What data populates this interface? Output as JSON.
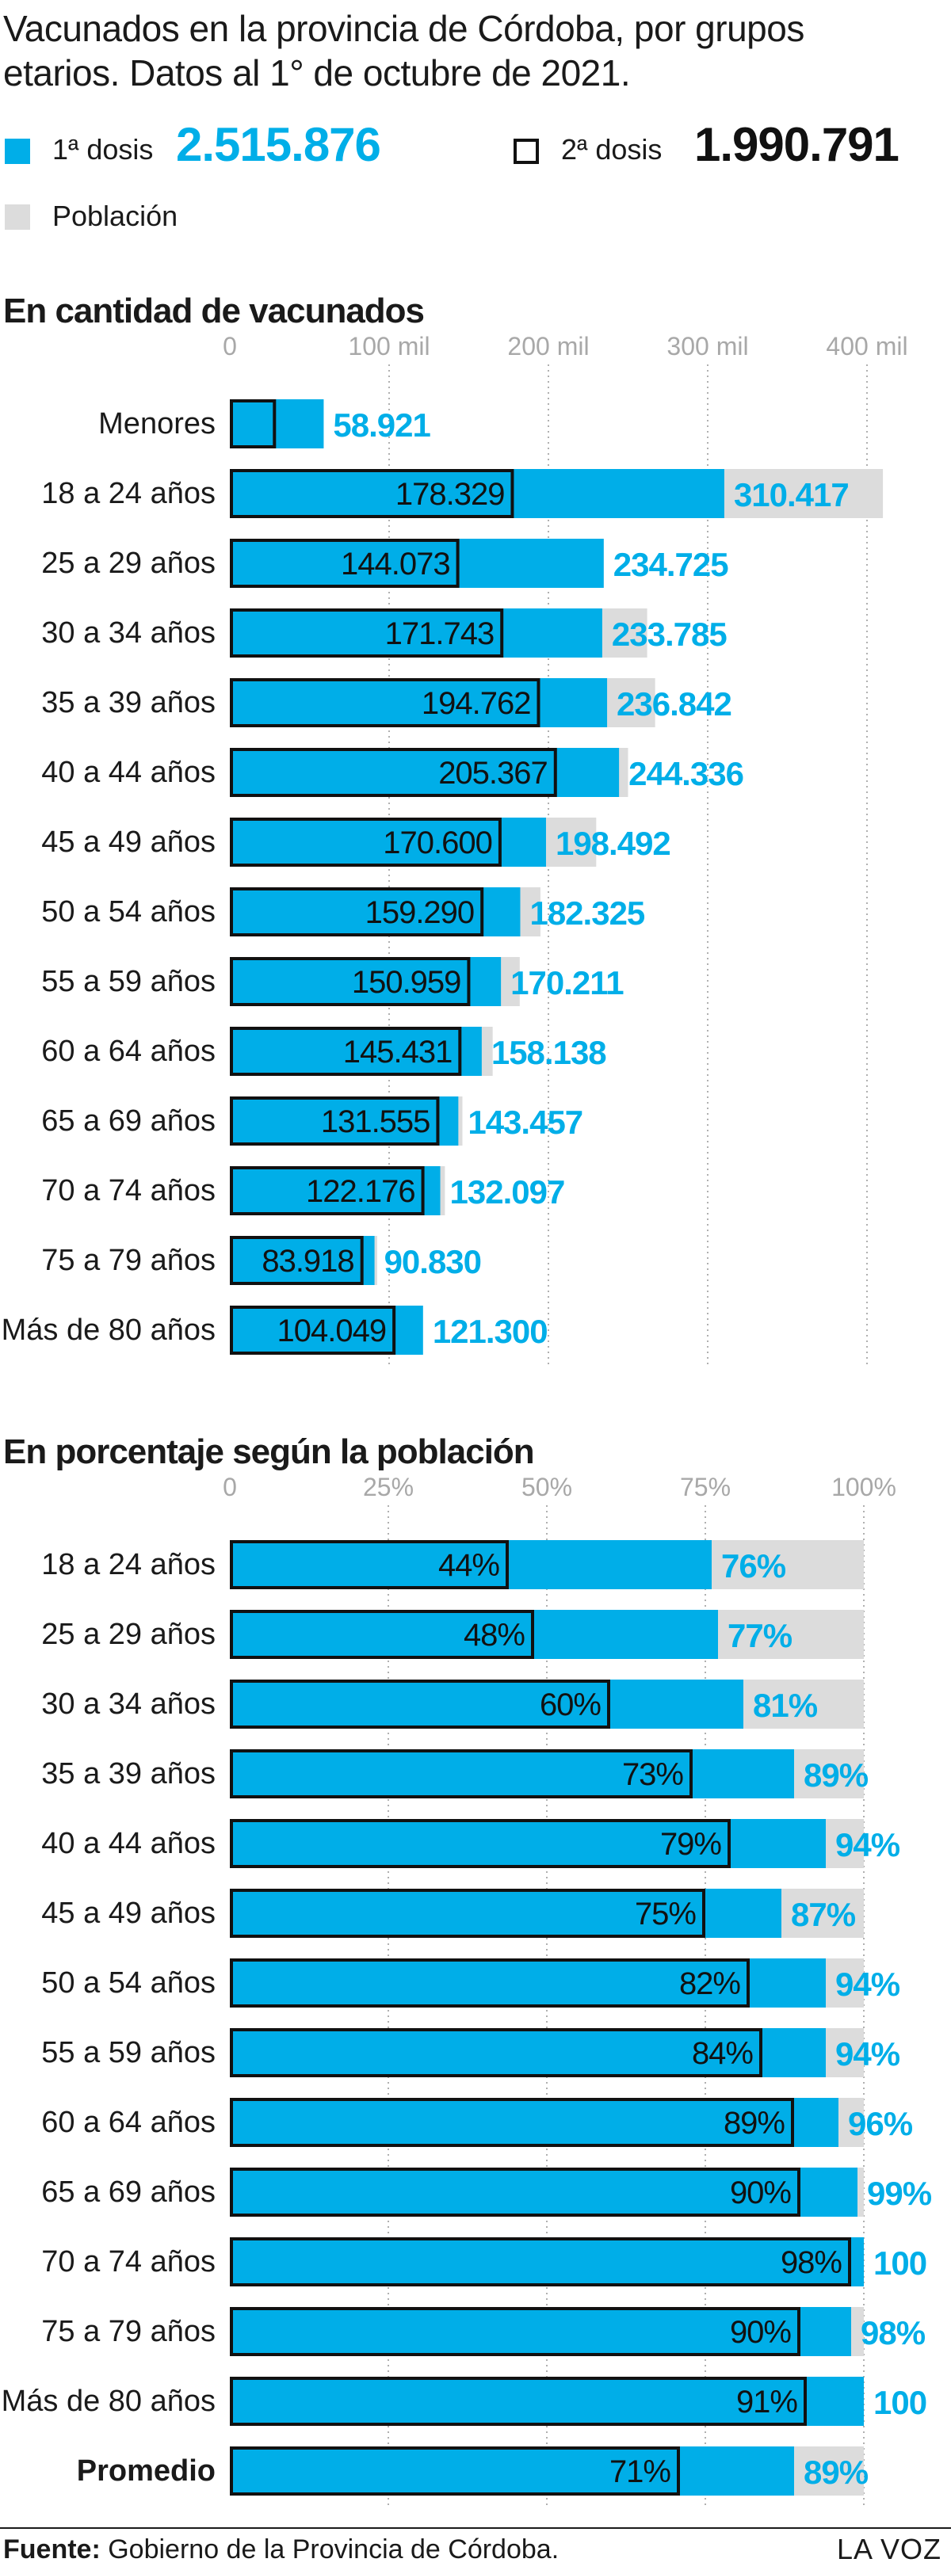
{
  "title": "Vacunados en la provincia de Córdoba, por grupos etarios. Datos al 1° de octubre de 2021.",
  "legend": {
    "dose1_label": "1ª dosis",
    "dose1_total": "2.515.876",
    "dose2_label": "2ª dosis",
    "dose2_total": "1.990.791",
    "population_label": "Población"
  },
  "colors": {
    "dose1": "#00aee8",
    "dose2_border": "#111111",
    "population": "#dcdcdc",
    "grid": "#b0b0b0",
    "tick": "#a8a8a8"
  },
  "footer": {
    "source_label": "Fuente:",
    "source_text": "Gobierno de la Provincia de Córdoba.",
    "brand": "LA VOZ"
  },
  "chart_data": [
    {
      "type": "bar",
      "title": "En cantidad de vacunados",
      "orientation": "horizontal",
      "xlim": [
        0,
        400000
      ],
      "ticks": [
        0,
        100000,
        200000,
        300000,
        400000
      ],
      "tick_labels": [
        "0",
        "100 mil",
        "200 mil",
        "300 mil",
        "400 mil"
      ],
      "grid": true,
      "categories": [
        "Menores",
        "18 a 24 años",
        "25 a 29 años",
        "30 a 34 años",
        "35 a 39 años",
        "40 a 44 años",
        "45 a 49 años",
        "50 a 54 años",
        "55 a 59 años",
        "60 a 64 años",
        "65 a 69 años",
        "70 a 74 años",
        "75 a 79  años",
        "Más de 80 años"
      ],
      "series": [
        {
          "name": "Población",
          "values": [
            null,
            410000,
            234725,
            262000,
            267000,
            250000,
            230000,
            195000,
            182000,
            165000,
            146000,
            135000,
            92500,
            114000
          ]
        },
        {
          "name": "1ª dosis",
          "values": [
            58921,
            310417,
            234725,
            233785,
            236842,
            244336,
            198492,
            182325,
            170211,
            158138,
            143457,
            132097,
            90830,
            121300
          ],
          "labels": [
            "58.921",
            "310.417",
            "234.725",
            "233.785",
            "236.842",
            "244.336",
            "198.492",
            "182.325",
            "170.211",
            "158.138",
            "143.457",
            "132.097",
            "90.830",
            "121.300"
          ]
        },
        {
          "name": "2ª dosis",
          "values": [
            29000,
            178329,
            144073,
            171743,
            194762,
            205367,
            170600,
            159290,
            150959,
            145431,
            131555,
            122176,
            83918,
            104049
          ],
          "labels": [
            "",
            "178.329",
            "144.073",
            "171.743",
            "194.762",
            "205.367",
            "170.600",
            "159.290",
            "150.959",
            "145.431",
            "131.555",
            "122.176",
            "83.918",
            "104.049"
          ]
        }
      ]
    },
    {
      "type": "bar",
      "title": "En porcentaje según la población",
      "orientation": "horizontal",
      "xlim": [
        0,
        100
      ],
      "ticks": [
        0,
        25,
        50,
        75,
        100
      ],
      "tick_labels": [
        "0",
        "25%",
        "50%",
        "75%",
        "100%"
      ],
      "grid": true,
      "categories": [
        "18 a 24 años",
        "25 a 29 años",
        "30 a 34 años",
        "35 a 39 años",
        "40 a 44 años",
        "45 a 49 años",
        "50 a 54 años",
        "55 a 59 años",
        "60 a 64 años",
        "65 a 69 años",
        "70 a 74 años",
        "75 a 79  años",
        "Más de 80 años",
        "Promedio"
      ],
      "bold_categories": [
        "Promedio"
      ],
      "series": [
        {
          "name": "Población",
          "values": [
            100,
            100,
            100,
            100,
            100,
            100,
            100,
            100,
            100,
            100,
            100,
            100,
            100,
            100
          ]
        },
        {
          "name": "1ª dosis",
          "values": [
            76,
            77,
            81,
            89,
            94,
            87,
            94,
            94,
            96,
            99,
            100,
            98,
            100,
            89
          ],
          "labels": [
            "76%",
            "77%",
            "81%",
            "89%",
            "94%",
            "87%",
            "94%",
            "94%",
            "96%",
            "99%",
            "100",
            "98%",
            "100",
            "89%"
          ]
        },
        {
          "name": "2ª dosis",
          "values": [
            44,
            48,
            60,
            73,
            79,
            75,
            82,
            84,
            89,
            90,
            98,
            90,
            91,
            71
          ],
          "labels": [
            "44%",
            "48%",
            "60%",
            "73%",
            "79%",
            "75%",
            "82%",
            "84%",
            "89%",
            "90%",
            "98%",
            "90%",
            "91%",
            "71%"
          ]
        }
      ]
    }
  ]
}
